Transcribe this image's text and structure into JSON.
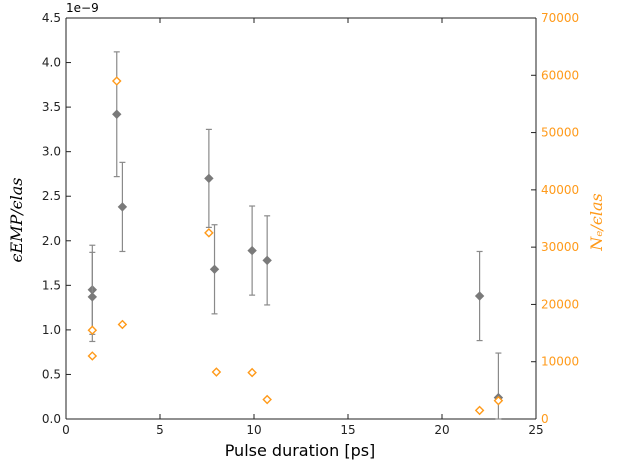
{
  "chart_data": {
    "type": "scatter",
    "xlabel": "Pulse duration [ps]",
    "ylabel_left": "ϵEMP/ϵlas",
    "ylabel_right": "Nₑ/ϵlas",
    "left_axis_offset_label": "1e−9",
    "xlim": [
      0,
      25
    ],
    "ylim_left": [
      0.0,
      4.5
    ],
    "ylim_right": [
      0,
      70000
    ],
    "x_ticks": [
      0,
      5,
      10,
      15,
      20,
      25
    ],
    "y_ticks_left": [
      "0.0",
      "0.5",
      "1.0",
      "1.5",
      "2.0",
      "2.5",
      "3.0",
      "3.5",
      "4.0",
      "4.5"
    ],
    "y_ticks_right": [
      "0",
      "10000",
      "20000",
      "30000",
      "40000",
      "50000",
      "60000",
      "70000"
    ],
    "grid": false,
    "colors": {
      "left_series": "#7a7a7a",
      "right_series": "#ff9a1a",
      "right_axis": "#ff9a1a",
      "axes": "#222222"
    },
    "series": [
      {
        "axis": "left",
        "marker": "filled-diamond-with-errorbars",
        "points": [
          {
            "x": 1.4,
            "y": 1.45,
            "err": 0.5
          },
          {
            "x": 1.4,
            "y": 1.37,
            "err": 0.5
          },
          {
            "x": 2.7,
            "y": 3.42,
            "err": 0.7
          },
          {
            "x": 3.0,
            "y": 2.38,
            "err": 0.5
          },
          {
            "x": 7.6,
            "y": 2.7,
            "err": 0.55
          },
          {
            "x": 7.9,
            "y": 1.68,
            "err": 0.5
          },
          {
            "x": 9.9,
            "y": 1.89,
            "err": 0.5
          },
          {
            "x": 10.7,
            "y": 1.78,
            "err": 0.5
          },
          {
            "x": 22.0,
            "y": 1.38,
            "err": 0.5
          },
          {
            "x": 23.0,
            "y": 0.24,
            "err": 0.5
          }
        ]
      },
      {
        "axis": "right",
        "marker": "hollow-diamond",
        "points": [
          {
            "x": 1.4,
            "y": 15500
          },
          {
            "x": 1.4,
            "y": 11000
          },
          {
            "x": 2.7,
            "y": 59000
          },
          {
            "x": 3.0,
            "y": 16500
          },
          {
            "x": 7.6,
            "y": 32500
          },
          {
            "x": 8.0,
            "y": 8200
          },
          {
            "x": 9.9,
            "y": 8100
          },
          {
            "x": 10.7,
            "y": 3400
          },
          {
            "x": 22.0,
            "y": 1500
          },
          {
            "x": 23.0,
            "y": 3200
          }
        ]
      }
    ]
  }
}
